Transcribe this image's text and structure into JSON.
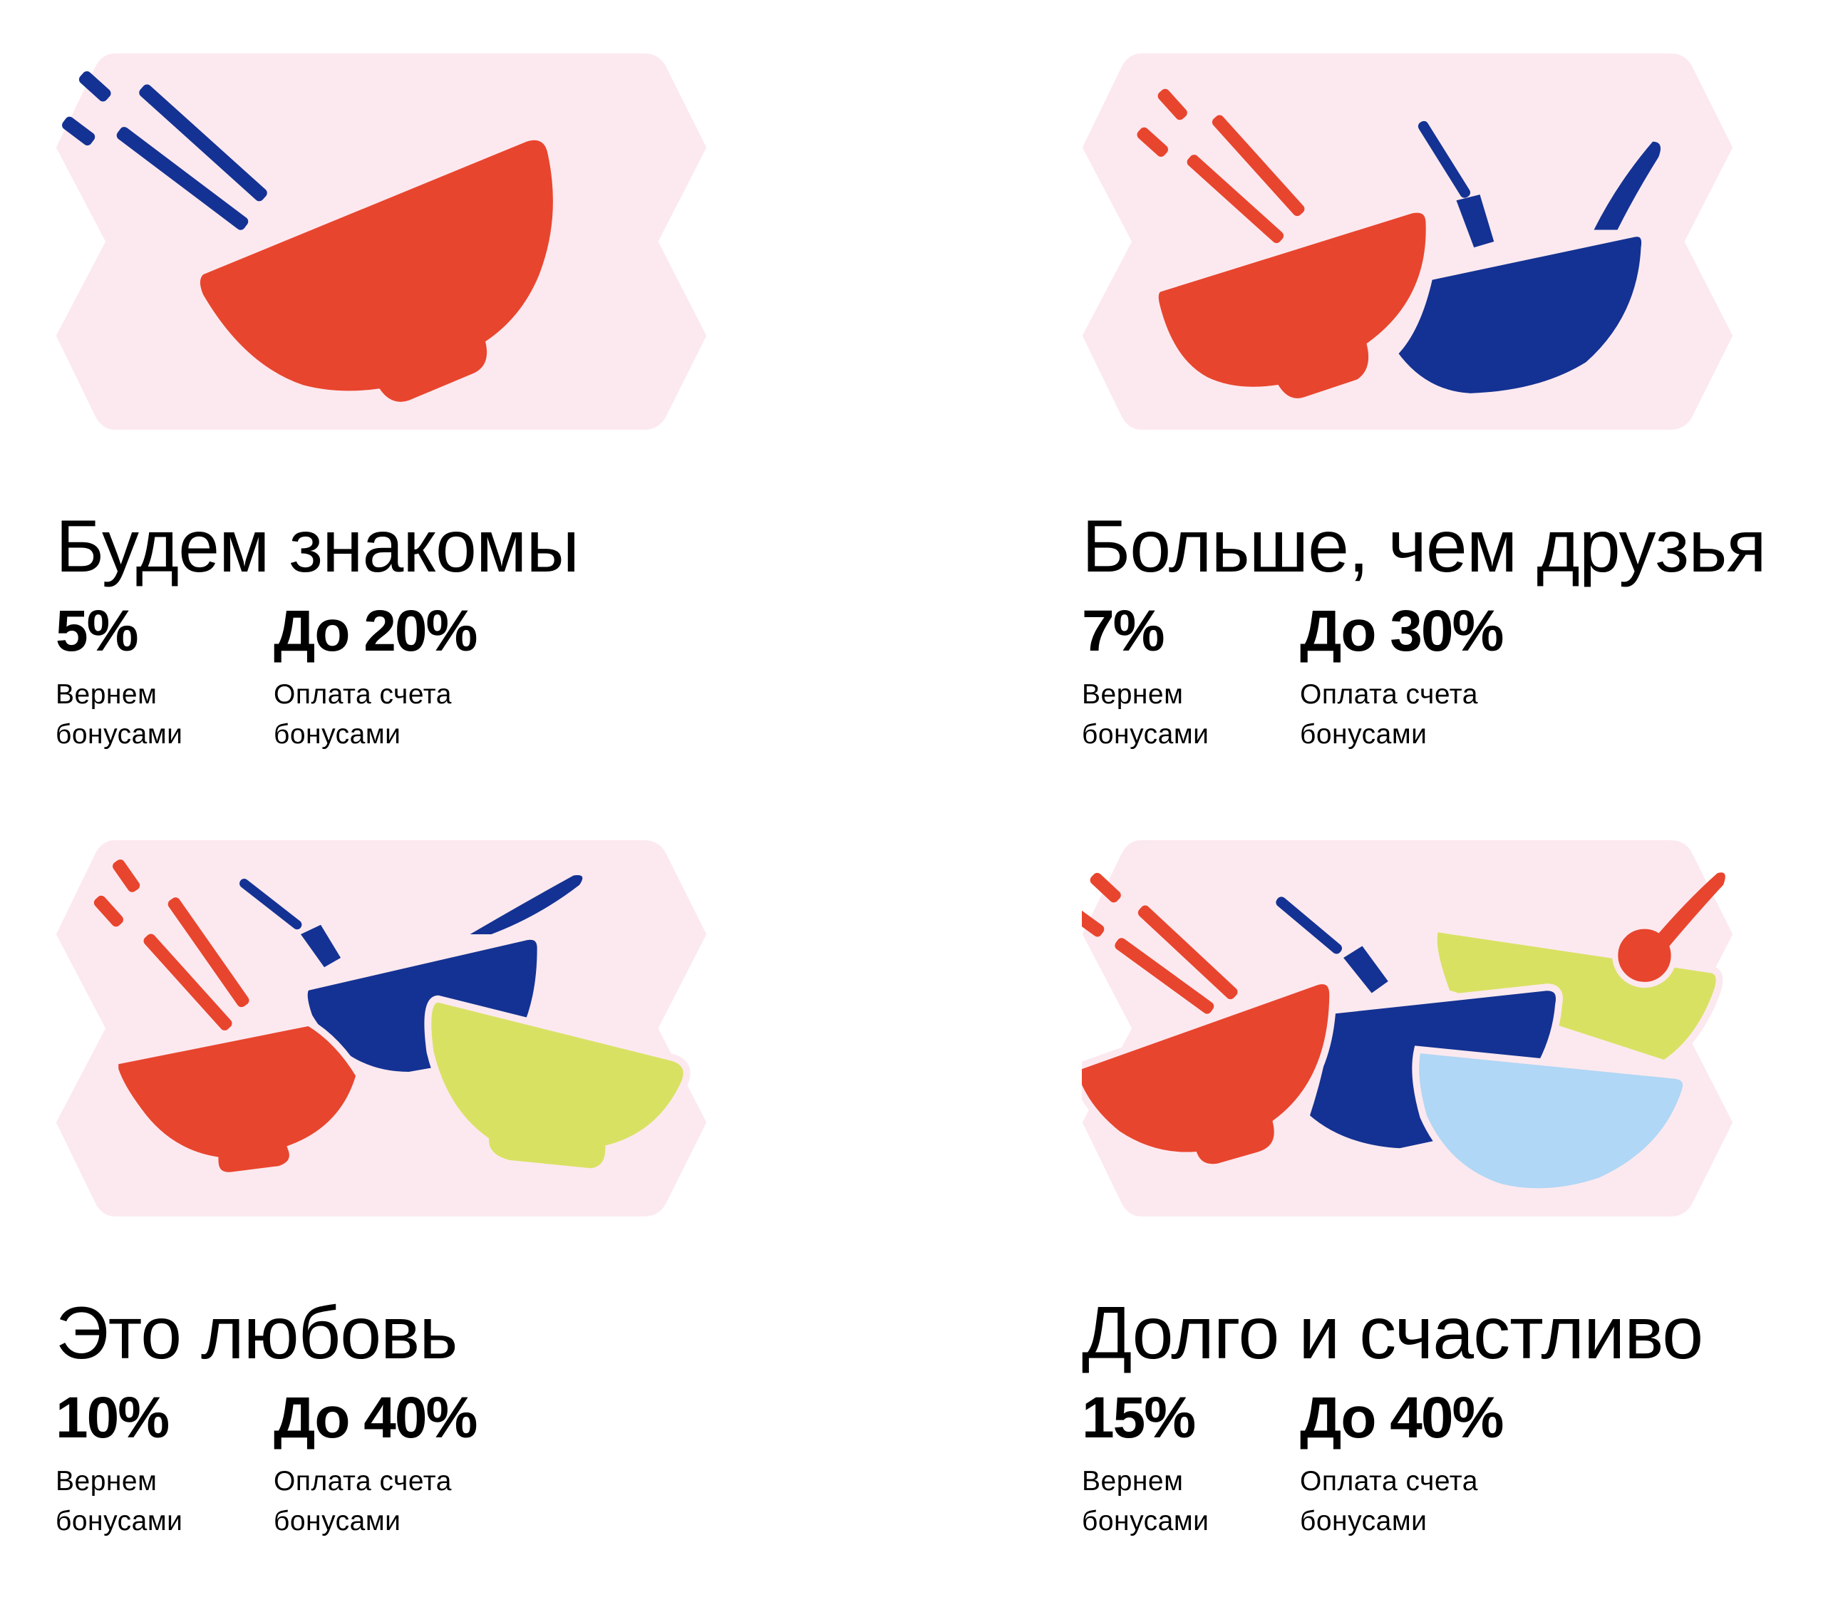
{
  "colors": {
    "background_shape": "#fce9ef",
    "red": "#e8452e",
    "blue": "#143293",
    "lime": "#d9e163",
    "light_blue": "#b0d7f5"
  },
  "tiers": [
    {
      "title": "Будем знакомы",
      "cashback": {
        "value": "5%",
        "label_line1": "Вернем",
        "label_line2": "бонусами"
      },
      "payment": {
        "value": "До 20%",
        "label_line1": "Оплата счета",
        "label_line2": "бонусами"
      },
      "illustration": "one red bowl with blue chopsticks"
    },
    {
      "title": "Больше, чем друзья",
      "cashback": {
        "value": "7%",
        "label_line1": "Вернем",
        "label_line2": "бонусами"
      },
      "payment": {
        "value": "До 30%",
        "label_line1": "Оплата счета",
        "label_line2": "бонусами"
      },
      "illustration": "red and blue bowls with chopsticks, fork, knife"
    },
    {
      "title": "Это любовь",
      "cashback": {
        "value": "10%",
        "label_line1": "Вернем",
        "label_line2": "бонусами"
      },
      "payment": {
        "value": "До 40%",
        "label_line1": "Оплата счета",
        "label_line2": "бонусами"
      },
      "illustration": "red, blue and lime bowls with chopsticks, fork, knife"
    },
    {
      "title": "Долго и счастливо",
      "cashback": {
        "value": "15%",
        "label_line1": "Вернем",
        "label_line2": "бонусами"
      },
      "payment": {
        "value": "До 40%",
        "label_line1": "Оплата счета",
        "label_line2": "бонусами"
      },
      "illustration": "red, blue, lime and light blue bowls with chopsticks, fork, ladle"
    }
  ]
}
